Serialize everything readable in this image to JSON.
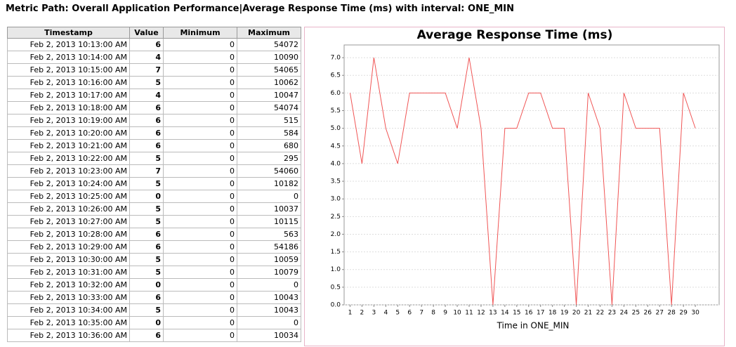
{
  "header": {
    "title": "Metric Path: Overall Application Performance|Average Response Time (ms) with interval: ONE_MIN"
  },
  "table": {
    "columns": [
      "Timestamp",
      "Value",
      "Minimum",
      "Maximum"
    ],
    "rows": [
      [
        "Feb 2, 2013 10:13:00 AM",
        6,
        0,
        54072
      ],
      [
        "Feb 2, 2013 10:14:00 AM",
        4,
        0,
        10090
      ],
      [
        "Feb 2, 2013 10:15:00 AM",
        7,
        0,
        54065
      ],
      [
        "Feb 2, 2013 10:16:00 AM",
        5,
        0,
        10062
      ],
      [
        "Feb 2, 2013 10:17:00 AM",
        4,
        0,
        10047
      ],
      [
        "Feb 2, 2013 10:18:00 AM",
        6,
        0,
        54074
      ],
      [
        "Feb 2, 2013 10:19:00 AM",
        6,
        0,
        515
      ],
      [
        "Feb 2, 2013 10:20:00 AM",
        6,
        0,
        584
      ],
      [
        "Feb 2, 2013 10:21:00 AM",
        6,
        0,
        680
      ],
      [
        "Feb 2, 2013 10:22:00 AM",
        5,
        0,
        295
      ],
      [
        "Feb 2, 2013 10:23:00 AM",
        7,
        0,
        54060
      ],
      [
        "Feb 2, 2013 10:24:00 AM",
        5,
        0,
        10182
      ],
      [
        "Feb 2, 2013 10:25:00 AM",
        0,
        0,
        0
      ],
      [
        "Feb 2, 2013 10:26:00 AM",
        5,
        0,
        10037
      ],
      [
        "Feb 2, 2013 10:27:00 AM",
        5,
        0,
        10115
      ],
      [
        "Feb 2, 2013 10:28:00 AM",
        6,
        0,
        563
      ],
      [
        "Feb 2, 2013 10:29:00 AM",
        6,
        0,
        54186
      ],
      [
        "Feb 2, 2013 10:30:00 AM",
        5,
        0,
        10059
      ],
      [
        "Feb 2, 2013 10:31:00 AM",
        5,
        0,
        10079
      ],
      [
        "Feb 2, 2013 10:32:00 AM",
        0,
        0,
        0
      ],
      [
        "Feb 2, 2013 10:33:00 AM",
        6,
        0,
        10043
      ],
      [
        "Feb 2, 2013 10:34:00 AM",
        5,
        0,
        10043
      ],
      [
        "Feb 2, 2013 10:35:00 AM",
        0,
        0,
        0
      ],
      [
        "Feb 2, 2013 10:36:00 AM",
        6,
        0,
        10034
      ]
    ]
  },
  "chart_data": {
    "type": "line",
    "title": "Average Response Time (ms)",
    "x_label": "Time in ONE_MIN",
    "x": [
      1,
      2,
      3,
      4,
      5,
      6,
      7,
      8,
      9,
      10,
      11,
      12,
      13,
      14,
      15,
      16,
      17,
      18,
      19,
      20,
      21,
      22,
      23,
      24,
      25,
      26,
      27,
      28,
      29,
      30
    ],
    "values": [
      6,
      4,
      7,
      5,
      4,
      6,
      6,
      6,
      6,
      5,
      7,
      5,
      0,
      5,
      5,
      6,
      6,
      5,
      5,
      0,
      6,
      5,
      0,
      6,
      5,
      5,
      5,
      0,
      6,
      5
    ],
    "color": "#f05555",
    "xlim": [
      0.5,
      32
    ],
    "xticks": [
      1,
      2,
      3,
      4,
      5,
      6,
      7,
      8,
      9,
      10,
      11,
      12,
      13,
      14,
      15,
      16,
      17,
      18,
      19,
      20,
      21,
      22,
      23,
      24,
      25,
      26,
      27,
      28,
      29,
      30
    ],
    "ylim": [
      0,
      7.36
    ],
    "yticks": [
      {
        "value": 0,
        "label": "0.0"
      },
      {
        "value": 0.5,
        "label": "0.5"
      },
      {
        "value": 1,
        "label": "1.0"
      },
      {
        "value": 1.5,
        "label": "1.5"
      },
      {
        "value": 2,
        "label": "2.0"
      },
      {
        "value": 2.5,
        "label": "2.5"
      },
      {
        "value": 3,
        "label": "3.0"
      },
      {
        "value": 3.5,
        "label": "3.5"
      },
      {
        "value": 4,
        "label": "4.0"
      },
      {
        "value": 4.5,
        "label": "4.5"
      },
      {
        "value": 5,
        "label": "5.0"
      },
      {
        "value": 5.5,
        "label": "5.5"
      },
      {
        "value": 6,
        "label": "6.0"
      },
      {
        "value": 6.5,
        "label": "6.5"
      },
      {
        "value": 7,
        "label": "7.0"
      }
    ],
    "grid": true
  }
}
